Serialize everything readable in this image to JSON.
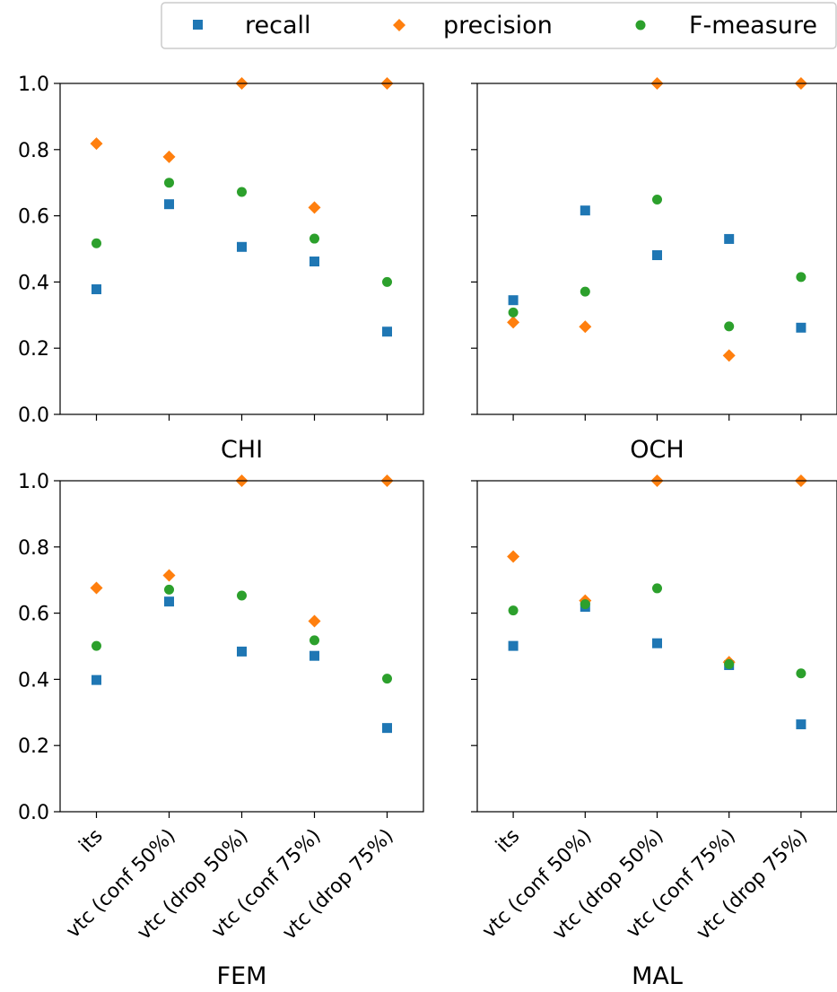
{
  "legend": {
    "placement": "top-right",
    "entries": [
      {
        "name": "recall",
        "marker": "square",
        "color": "#1f77b4"
      },
      {
        "name": "precision",
        "marker": "diamond",
        "color": "#ff7f0e"
      },
      {
        "name": "F-measure",
        "marker": "circle",
        "color": "#2ca02c"
      }
    ]
  },
  "chart_data": [
    {
      "type": "scatter",
      "title": "CHI",
      "categories": [
        "its",
        "vtc (conf 50%)",
        "vtc (drop 50%)",
        "vtc (conf 75%)",
        "vtc (drop 75%)"
      ],
      "ylim": [
        0,
        1
      ],
      "yticks": [
        "0.0",
        "0.2",
        "0.4",
        "0.6",
        "0.8",
        "1.0"
      ],
      "show_xtick_labels": false,
      "show_ytick_labels": true,
      "grid": false,
      "series": [
        {
          "name": "recall",
          "values": [
            0.378,
            0.635,
            0.506,
            0.462,
            0.25
          ]
        },
        {
          "name": "precision",
          "values": [
            0.818,
            0.778,
            1.0,
            0.625,
            1.0
          ]
        },
        {
          "name": "F-measure",
          "values": [
            0.517,
            0.7,
            0.672,
            0.531,
            0.4
          ]
        }
      ]
    },
    {
      "type": "scatter",
      "title": "OCH",
      "categories": [
        "its",
        "vtc (conf 50%)",
        "vtc (drop 50%)",
        "vtc (conf 75%)",
        "vtc (drop 75%)"
      ],
      "ylim": [
        0,
        1
      ],
      "yticks": [
        "0.0",
        "0.2",
        "0.4",
        "0.6",
        "0.8",
        "1.0"
      ],
      "show_xtick_labels": false,
      "show_ytick_labels": false,
      "grid": false,
      "series": [
        {
          "name": "recall",
          "values": [
            0.345,
            0.616,
            0.481,
            0.53,
            0.262
          ]
        },
        {
          "name": "precision",
          "values": [
            0.278,
            0.265,
            1.0,
            0.178,
            1.0
          ]
        },
        {
          "name": "F-measure",
          "values": [
            0.308,
            0.371,
            0.649,
            0.266,
            0.415
          ]
        }
      ]
    },
    {
      "type": "scatter",
      "title": "FEM",
      "categories": [
        "its",
        "vtc (conf 50%)",
        "vtc (drop 50%)",
        "vtc (conf 75%)",
        "vtc (drop 75%)"
      ],
      "ylim": [
        0,
        1
      ],
      "yticks": [
        "0.0",
        "0.2",
        "0.4",
        "0.6",
        "0.8",
        "1.0"
      ],
      "show_xtick_labels": true,
      "show_ytick_labels": true,
      "grid": false,
      "series": [
        {
          "name": "recall",
          "values": [
            0.398,
            0.635,
            0.484,
            0.471,
            0.253
          ]
        },
        {
          "name": "precision",
          "values": [
            0.676,
            0.714,
            1.0,
            0.576,
            1.0
          ]
        },
        {
          "name": "F-measure",
          "values": [
            0.501,
            0.671,
            0.653,
            0.518,
            0.402
          ]
        }
      ]
    },
    {
      "type": "scatter",
      "title": "MAL",
      "categories": [
        "its",
        "vtc (conf 50%)",
        "vtc (drop 50%)",
        "vtc (conf 75%)",
        "vtc (drop 75%)"
      ],
      "ylim": [
        0,
        1
      ],
      "yticks": [
        "0.0",
        "0.2",
        "0.4",
        "0.6",
        "0.8",
        "1.0"
      ],
      "show_xtick_labels": true,
      "show_ytick_labels": false,
      "grid": false,
      "series": [
        {
          "name": "recall",
          "values": [
            0.501,
            0.619,
            0.509,
            0.443,
            0.264
          ]
        },
        {
          "name": "precision",
          "values": [
            0.771,
            0.638,
            1.0,
            0.452,
            1.0
          ]
        },
        {
          "name": "F-measure",
          "values": [
            0.608,
            0.627,
            0.675,
            0.446,
            0.418
          ]
        }
      ]
    }
  ]
}
